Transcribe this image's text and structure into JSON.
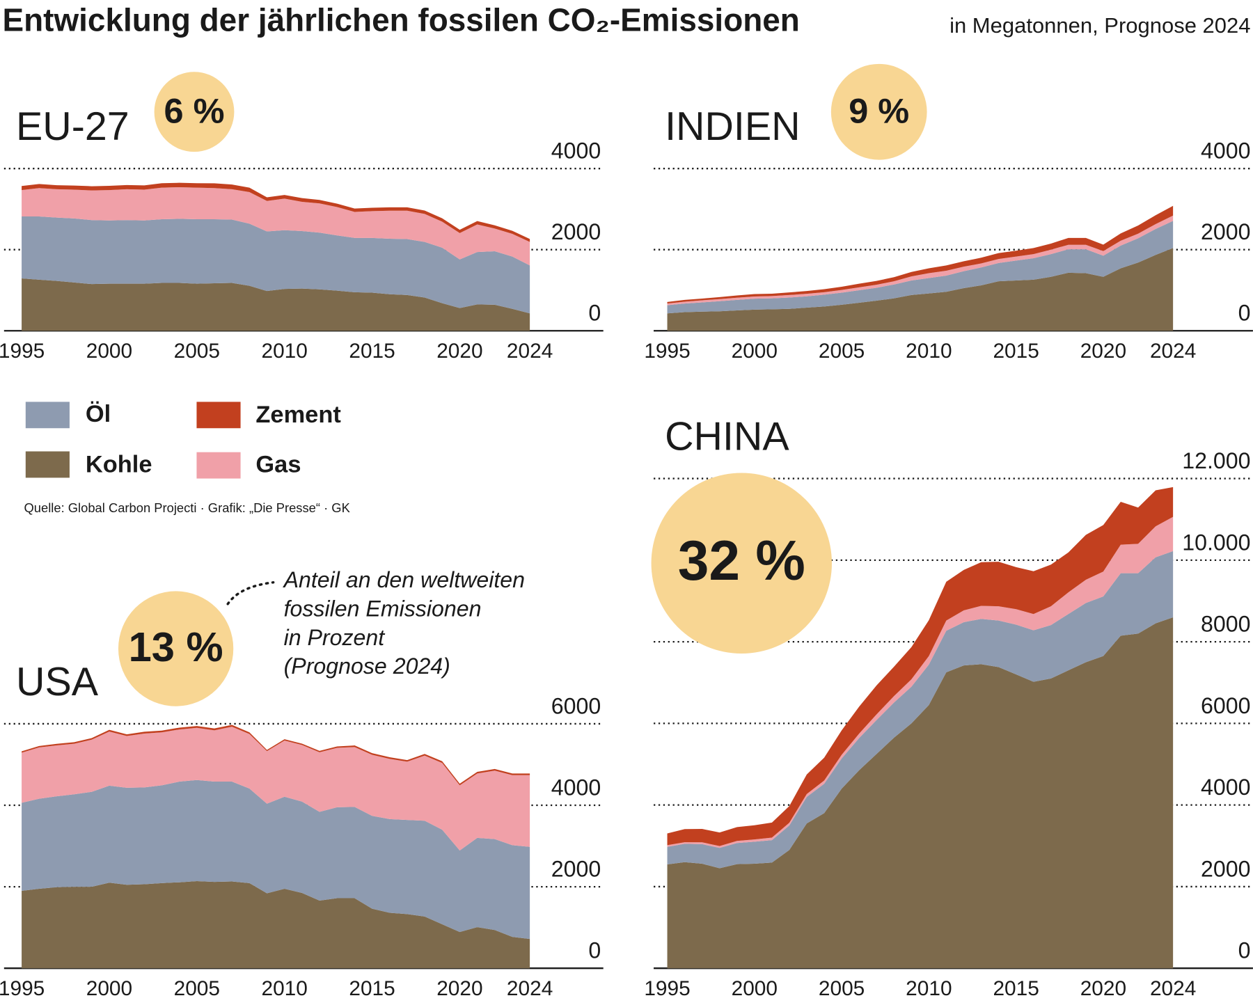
{
  "title": "Entwicklung der jährlichen fossilen CO₂-Emissionen",
  "subtitle": "in Megatonnen, Prognose 2024",
  "source": "Quelle: Global Carbon Projecti · Grafik: „Die Presse“ · GK",
  "annotation": [
    "Anteil an den weltweiten",
    "fossilen Emissionen",
    "in Prozent",
    "(Prognose 2024)"
  ],
  "chart_data": [
    {
      "type": "area",
      "stacked": true,
      "title": "EU-27",
      "share_label": "6 %",
      "x": [
        1995,
        1996,
        1997,
        1998,
        1999,
        2000,
        2001,
        2002,
        2003,
        2004,
        2005,
        2006,
        2007,
        2008,
        2009,
        2010,
        2011,
        2012,
        2013,
        2014,
        2015,
        2016,
        2017,
        2018,
        2019,
        2020,
        2021,
        2022,
        2023,
        2024
      ],
      "xlim": [
        1995,
        2024
      ],
      "xticks": [
        1995,
        2000,
        2005,
        2010,
        2015,
        2020,
        2024
      ],
      "ylim": [
        0,
        4000
      ],
      "yticks": [
        0,
        2000,
        4000
      ],
      "series": [
        {
          "name": "Kohle",
          "color": "#7d6a4c",
          "values": [
            1290,
            1260,
            1230,
            1190,
            1150,
            1160,
            1160,
            1160,
            1180,
            1180,
            1160,
            1170,
            1180,
            1110,
            980,
            1030,
            1040,
            1020,
            990,
            950,
            940,
            900,
            880,
            820,
            680,
            560,
            650,
            640,
            540,
            430
          ]
        },
        {
          "name": "Öl",
          "color": "#8e9bb0",
          "values": [
            1530,
            1560,
            1560,
            1580,
            1580,
            1560,
            1570,
            1560,
            1570,
            1580,
            1590,
            1580,
            1560,
            1530,
            1470,
            1450,
            1420,
            1400,
            1360,
            1340,
            1350,
            1370,
            1380,
            1370,
            1370,
            1200,
            1290,
            1320,
            1290,
            1180
          ]
        },
        {
          "name": "Gas",
          "color": "#f0a0a8",
          "values": [
            650,
            700,
            700,
            710,
            730,
            750,
            760,
            760,
            780,
            780,
            780,
            770,
            750,
            780,
            750,
            780,
            720,
            720,
            700,
            640,
            660,
            690,
            700,
            690,
            640,
            650,
            680,
            560,
            560,
            580
          ]
        },
        {
          "name": "Zement",
          "color": "#c2401f",
          "values": [
            100,
            100,
            100,
            100,
            105,
            105,
            105,
            105,
            110,
            110,
            110,
            115,
            115,
            110,
            90,
            90,
            90,
            85,
            85,
            85,
            85,
            85,
            85,
            85,
            85,
            80,
            85,
            80,
            75,
            75
          ]
        }
      ]
    },
    {
      "type": "area",
      "stacked": true,
      "title": "INDIEN",
      "share_label": "9 %",
      "x": [
        1995,
        1996,
        1997,
        1998,
        1999,
        2000,
        2001,
        2002,
        2003,
        2004,
        2005,
        2006,
        2007,
        2008,
        2009,
        2010,
        2011,
        2012,
        2013,
        2014,
        2015,
        2016,
        2017,
        2018,
        2019,
        2020,
        2021,
        2022,
        2023,
        2024
      ],
      "xlim": [
        1995,
        2024
      ],
      "xticks": [
        1995,
        2000,
        2005,
        2010,
        2015,
        2020,
        2024
      ],
      "ylim": [
        0,
        4000
      ],
      "yticks": [
        0,
        2000,
        4000
      ],
      "series": [
        {
          "name": "Kohle",
          "color": "#7d6a4c",
          "values": [
            430,
            460,
            470,
            480,
            500,
            520,
            530,
            540,
            570,
            600,
            640,
            690,
            740,
            800,
            880,
            920,
            960,
            1050,
            1120,
            1220,
            1240,
            1260,
            1330,
            1430,
            1420,
            1330,
            1540,
            1680,
            1870,
            2040
          ]
        },
        {
          "name": "Öl",
          "color": "#8e9bb0",
          "values": [
            200,
            210,
            230,
            250,
            260,
            270,
            270,
            280,
            280,
            290,
            300,
            310,
            320,
            340,
            360,
            380,
            400,
            420,
            440,
            450,
            490,
            530,
            560,
            580,
            590,
            520,
            560,
            600,
            640,
            670
          ]
        },
        {
          "name": "Gas",
          "color": "#f0a0a8",
          "values": [
            40,
            45,
            50,
            50,
            55,
            55,
            55,
            60,
            60,
            60,
            65,
            70,
            75,
            80,
            100,
            120,
            120,
            110,
            100,
            100,
            100,
            100,
            110,
            110,
            110,
            115,
            120,
            115,
            120,
            130
          ]
        },
        {
          "name": "Zement",
          "color": "#c2401f",
          "values": [
            40,
            45,
            45,
            50,
            55,
            60,
            60,
            65,
            70,
            75,
            80,
            90,
            95,
            100,
            110,
            120,
            130,
            135,
            140,
            145,
            145,
            150,
            150,
            170,
            170,
            160,
            180,
            200,
            220,
            240
          ]
        }
      ]
    },
    {
      "type": "area",
      "stacked": true,
      "title": "USA",
      "share_label": "13 %",
      "x": [
        1995,
        1996,
        1997,
        1998,
        1999,
        2000,
        2001,
        2002,
        2003,
        2004,
        2005,
        2006,
        2007,
        2008,
        2009,
        2010,
        2011,
        2012,
        2013,
        2014,
        2015,
        2016,
        2017,
        2018,
        2019,
        2020,
        2021,
        2022,
        2023,
        2024
      ],
      "xlim": [
        1995,
        2024
      ],
      "xticks": [
        1995,
        2000,
        2005,
        2010,
        2015,
        2020,
        2024
      ],
      "ylim": [
        0,
        6000
      ],
      "yticks": [
        0,
        2000,
        4000,
        6000
      ],
      "series": [
        {
          "name": "Kohle",
          "color": "#7d6a4c",
          "values": [
            1900,
            1950,
            1990,
            2000,
            2000,
            2100,
            2050,
            2060,
            2090,
            2110,
            2140,
            2120,
            2130,
            2090,
            1840,
            1950,
            1850,
            1660,
            1720,
            1720,
            1460,
            1360,
            1330,
            1270,
            1080,
            890,
            1010,
            940,
            770,
            720
          ]
        },
        {
          "name": "Öl",
          "color": "#8e9bb0",
          "values": [
            2160,
            2210,
            2230,
            2270,
            2330,
            2380,
            2380,
            2380,
            2400,
            2470,
            2480,
            2460,
            2450,
            2320,
            2200,
            2260,
            2240,
            2180,
            2230,
            2240,
            2280,
            2300,
            2310,
            2350,
            2320,
            2000,
            2190,
            2230,
            2250,
            2260
          ]
        },
        {
          "name": "Gas",
          "color": "#f0a0a8",
          "values": [
            1230,
            1260,
            1250,
            1240,
            1280,
            1330,
            1270,
            1320,
            1300,
            1280,
            1280,
            1260,
            1350,
            1340,
            1290,
            1380,
            1390,
            1460,
            1460,
            1470,
            1500,
            1480,
            1430,
            1600,
            1640,
            1600,
            1580,
            1680,
            1720,
            1760
          ]
        },
        {
          "name": "Zement",
          "color": "#c2401f",
          "values": [
            35,
            35,
            38,
            39,
            40,
            41,
            41,
            43,
            43,
            46,
            46,
            46,
            44,
            41,
            29,
            31,
            32,
            35,
            36,
            39,
            40,
            39,
            40,
            40,
            40,
            40,
            41,
            41,
            40,
            40
          ]
        }
      ]
    },
    {
      "type": "area",
      "stacked": true,
      "title": "CHINA",
      "share_label": "32 %",
      "x": [
        1995,
        1996,
        1997,
        1998,
        1999,
        2000,
        2001,
        2002,
        2003,
        2004,
        2005,
        2006,
        2007,
        2008,
        2009,
        2010,
        2011,
        2012,
        2013,
        2014,
        2015,
        2016,
        2017,
        2018,
        2019,
        2020,
        2021,
        2022,
        2023,
        2024
      ],
      "xlim": [
        1995,
        2024
      ],
      "xticks": [
        1995,
        2000,
        2005,
        2010,
        2015,
        2020,
        2024
      ],
      "ylim": [
        0,
        12000
      ],
      "yticks": [
        0,
        2000,
        4000,
        6000,
        8000,
        {
          "value": 10000,
          "label": "10.000"
        },
        {
          "value": 12000,
          "label": "12.000"
        }
      ],
      "series": [
        {
          "name": "Kohle",
          "color": "#7d6a4c",
          "values": [
            2545,
            2600,
            2560,
            2450,
            2550,
            2560,
            2590,
            2900,
            3550,
            3800,
            4400,
            4850,
            5250,
            5650,
            6000,
            6450,
            7250,
            7420,
            7450,
            7380,
            7200,
            7020,
            7100,
            7300,
            7500,
            7650,
            8150,
            8200,
            8450,
            8600
          ]
        },
        {
          "name": "Öl",
          "color": "#8e9bb0",
          "values": [
            430,
            450,
            480,
            500,
            520,
            540,
            550,
            600,
            650,
            720,
            740,
            790,
            830,
            860,
            900,
            990,
            1020,
            1060,
            1110,
            1140,
            1220,
            1260,
            1310,
            1380,
            1450,
            1460,
            1530,
            1480,
            1620,
            1620
          ]
        },
        {
          "name": "Gas",
          "color": "#f0a0a8",
          "values": [
            40,
            40,
            45,
            45,
            50,
            55,
            60,
            65,
            70,
            80,
            90,
            110,
            140,
            160,
            180,
            210,
            250,
            290,
            320,
            350,
            380,
            400,
            460,
            530,
            570,
            610,
            700,
            720,
            760,
            840
          ]
        },
        {
          "name": "Zement",
          "color": "#c2401f",
          "values": [
            290,
            320,
            330,
            330,
            340,
            350,
            370,
            410,
            480,
            560,
            600,
            660,
            710,
            720,
            790,
            880,
            950,
            990,
            1070,
            1090,
            1030,
            1050,
            1020,
            980,
            1100,
            1140,
            1050,
            890,
            880,
            730
          ]
        }
      ]
    }
  ]
}
